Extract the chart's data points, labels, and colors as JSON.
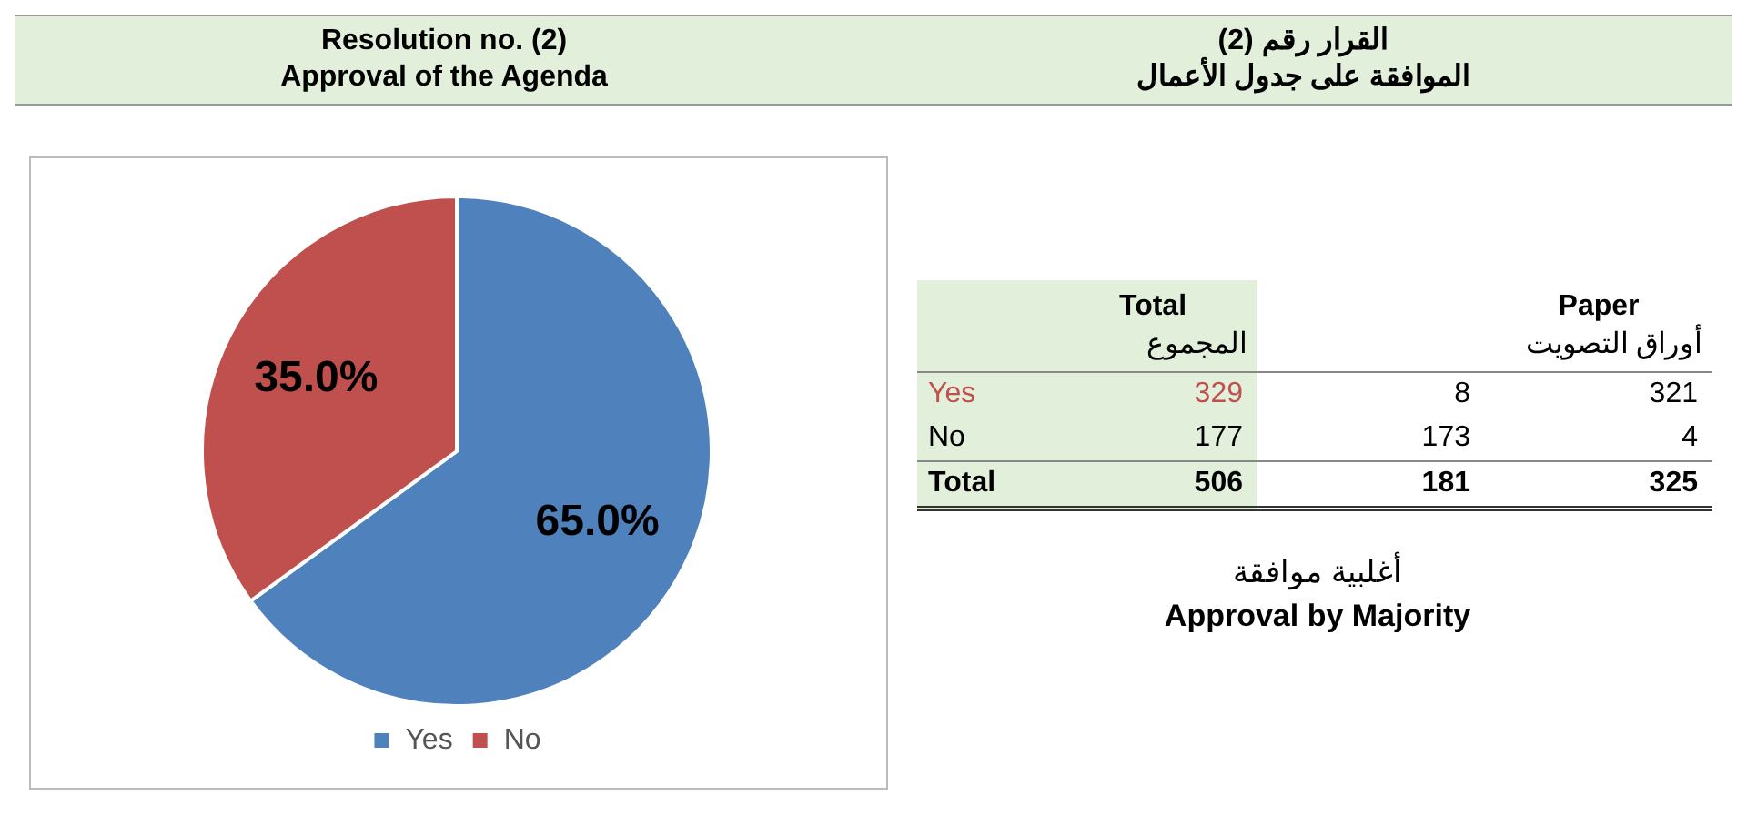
{
  "chart_data": [
    {
      "type": "pie",
      "title": "Resolution no. (2)",
      "subtitle": "Approval of the Agenda",
      "categories": [
        "Yes",
        "No"
      ],
      "values": [
        65.0,
        35.0
      ],
      "value_labels": [
        "65.0%",
        "35.0%"
      ],
      "colors": [
        "#4f81bd",
        "#c0504d"
      ],
      "legend": "bottom"
    },
    {
      "type": "other",
      "title": "القرار رقم (2)",
      "subtitle": "الموافقة على جدول الأعمال",
      "categories": [
        "Total\nالمجموع",
        null,
        "Paper\nأوراق التصويت"
      ],
      "y_categories": [
        "Yes",
        "No",
        "Total"
      ],
      "cell_labels": [
        [
          "329",
          "8",
          "321"
        ],
        [
          "177",
          "173",
          "4"
        ],
        [
          "506",
          "181",
          "325"
        ]
      ],
      "annotations": [
        "أغلبية موافقة",
        "Approval by Majority"
      ]
    }
  ]
}
